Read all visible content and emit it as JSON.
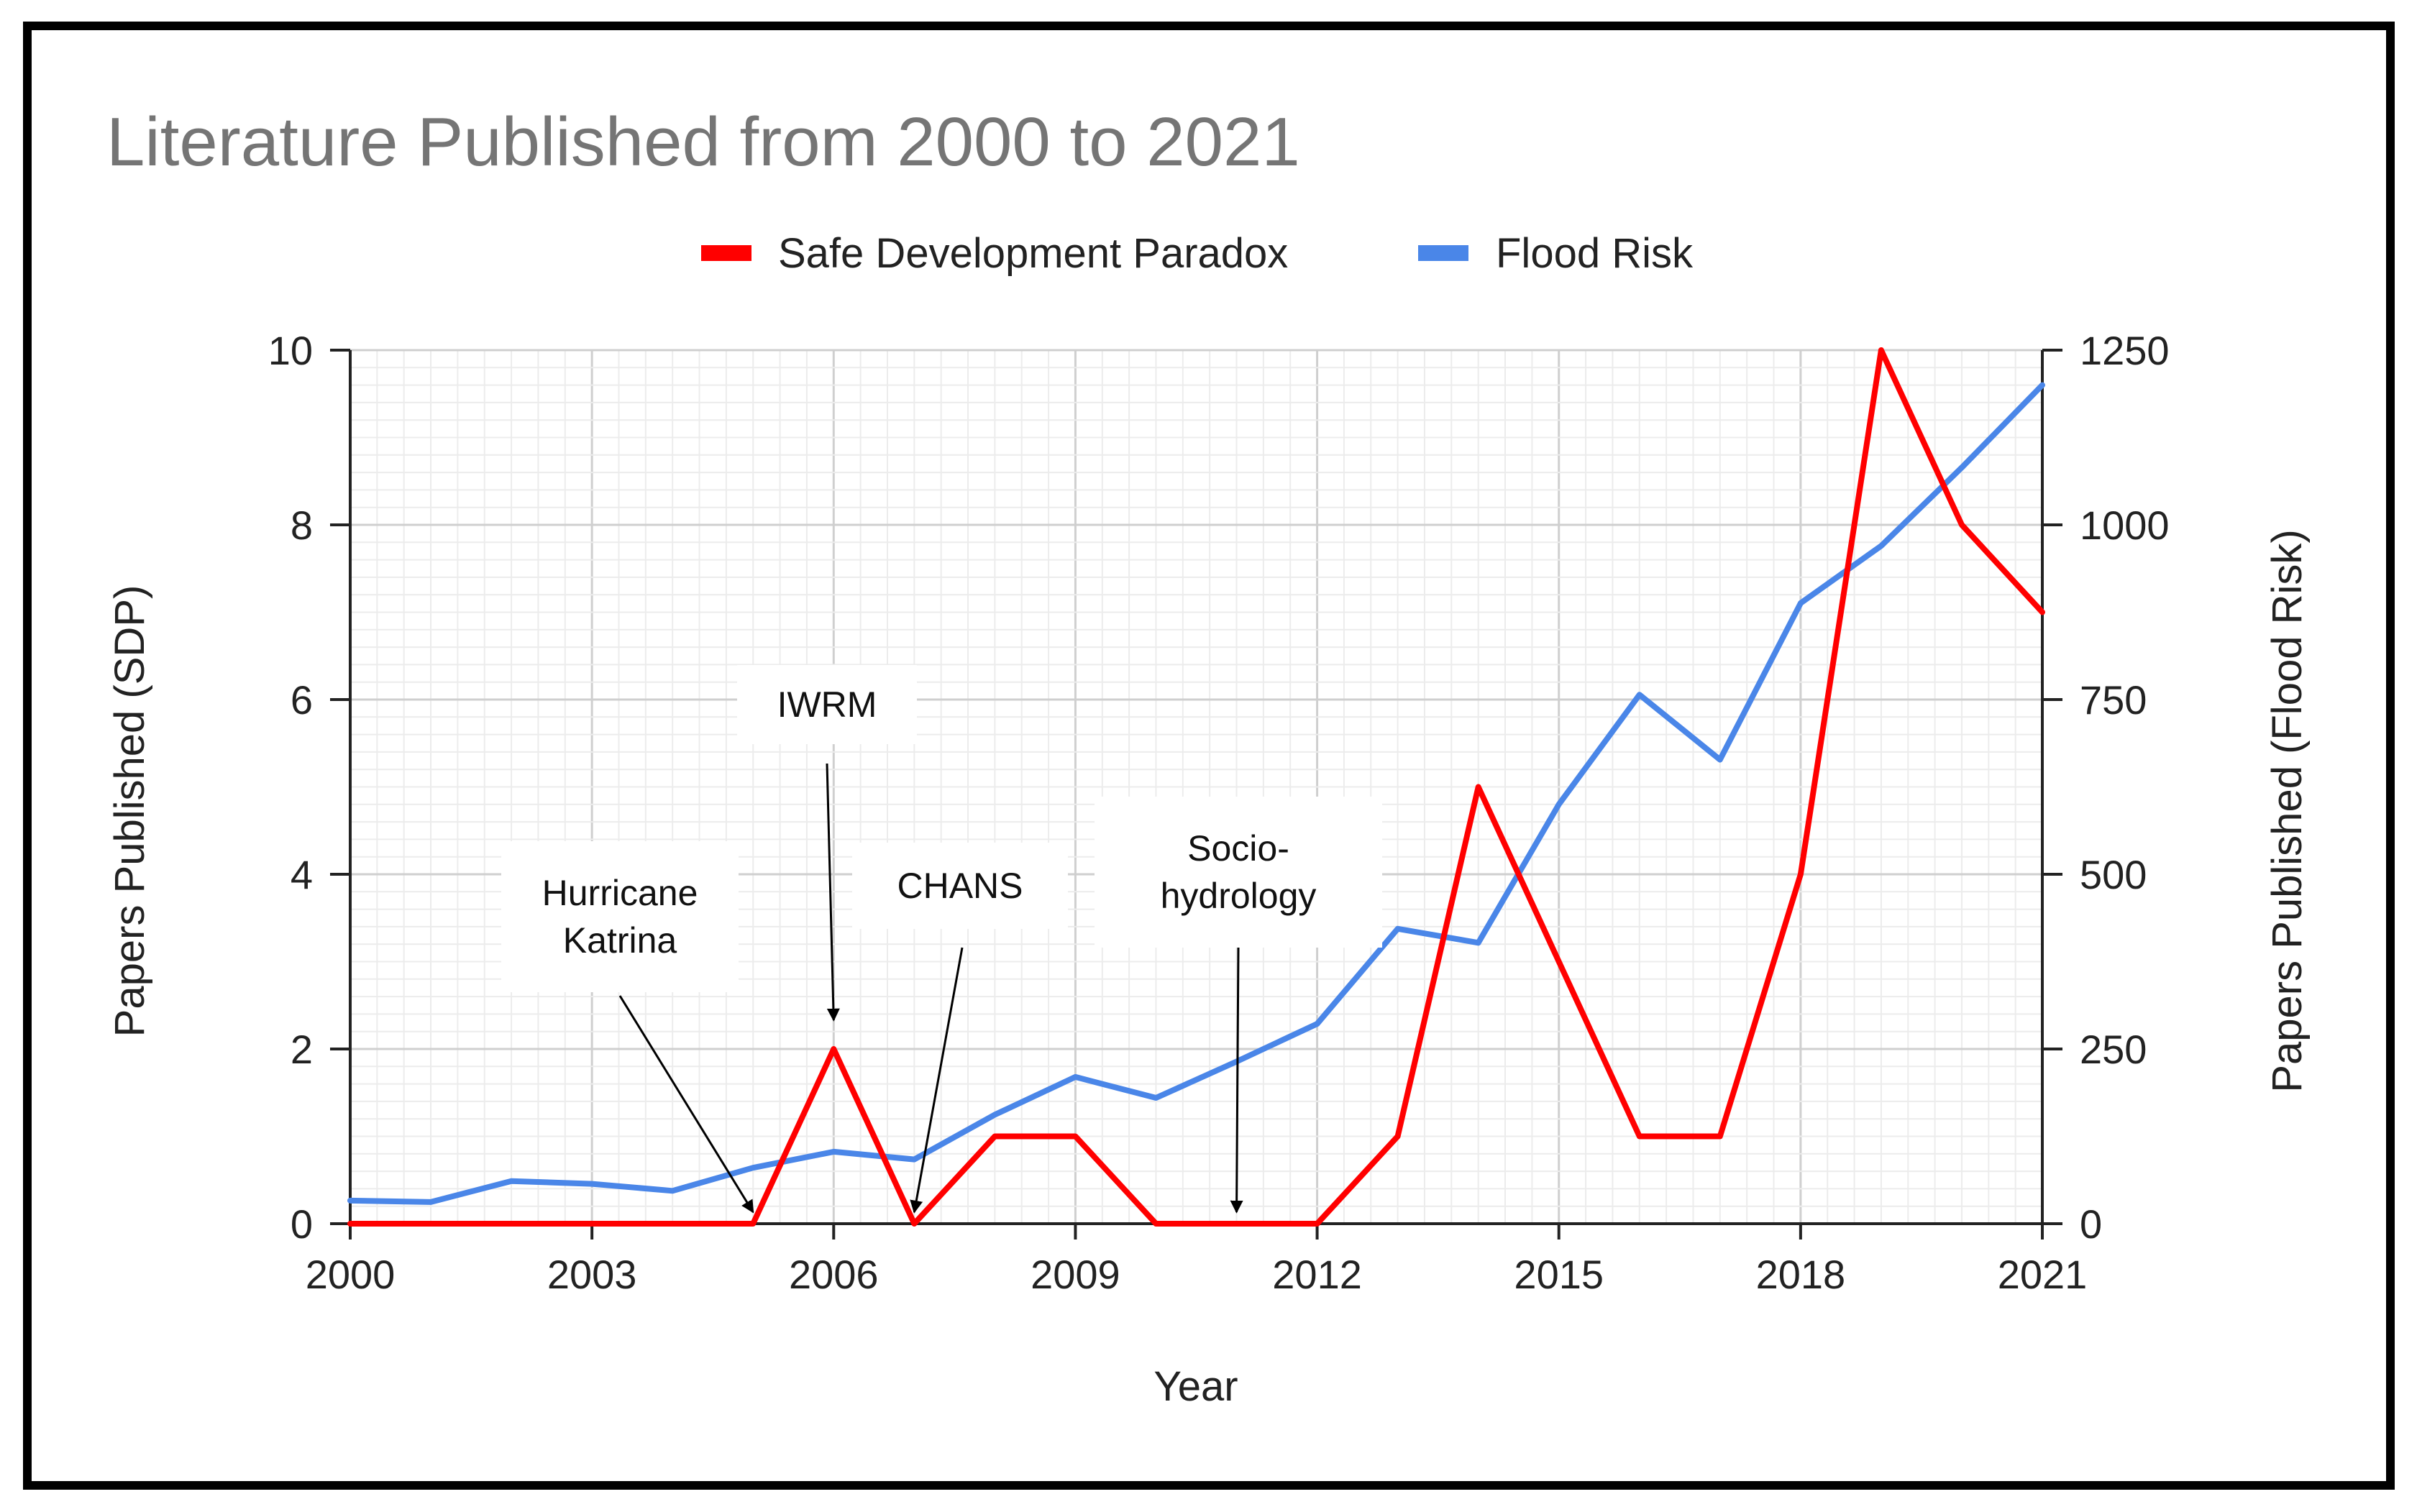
{
  "chart_data": {
    "type": "line",
    "title": "Literature Published from 2000 to 2021",
    "xlabel": "Year",
    "ylabel_left": "Papers Published (SDP)",
    "ylabel_right": "Papers Published (Flood Risk)",
    "x": [
      2000,
      2001,
      2002,
      2003,
      2004,
      2005,
      2006,
      2007,
      2008,
      2009,
      2010,
      2011,
      2012,
      2013,
      2014,
      2015,
      2016,
      2017,
      2018,
      2019,
      2020,
      2021
    ],
    "xlim": [
      2000,
      2021
    ],
    "ylim_left": [
      0,
      10
    ],
    "ylim_right": [
      0,
      1250
    ],
    "x_ticks": [
      "2000",
      "2003",
      "2006",
      "2009",
      "2012",
      "2015",
      "2018",
      "2021"
    ],
    "y_ticks_left": [
      "0",
      "2",
      "4",
      "6",
      "8",
      "10"
    ],
    "y_ticks_right": [
      "0",
      "250",
      "500",
      "750",
      "1000",
      "1250"
    ],
    "grid": true,
    "legend_position": "top",
    "series": [
      {
        "name": "Safe Development Paradox",
        "axis": "left",
        "color": "#ff0000",
        "values": [
          0,
          0,
          0,
          0,
          0,
          0,
          2,
          0,
          1,
          1,
          0,
          0,
          0,
          1,
          5,
          3,
          1,
          1,
          4,
          10,
          8,
          7
        ]
      },
      {
        "name": "Flood Risk",
        "axis": "right",
        "color": "#4a86e8",
        "values": [
          33,
          31,
          61,
          57,
          47,
          80,
          103,
          92,
          156,
          210,
          180,
          232,
          286,
          422,
          402,
          600,
          757,
          664,
          888,
          970,
          1082,
          1200
        ]
      }
    ],
    "annotations": [
      {
        "lines": [
          "Hurricane",
          "Katrina"
        ],
        "x": 2005,
        "y": 0
      },
      {
        "lines": [
          "IWRM"
        ],
        "x": 2006,
        "y": 2
      },
      {
        "lines": [
          "CHANS"
        ],
        "x": 2007,
        "y": 0
      },
      {
        "lines": [
          "Socio-",
          "hydrology"
        ],
        "x": 2011,
        "y": 0
      }
    ]
  }
}
